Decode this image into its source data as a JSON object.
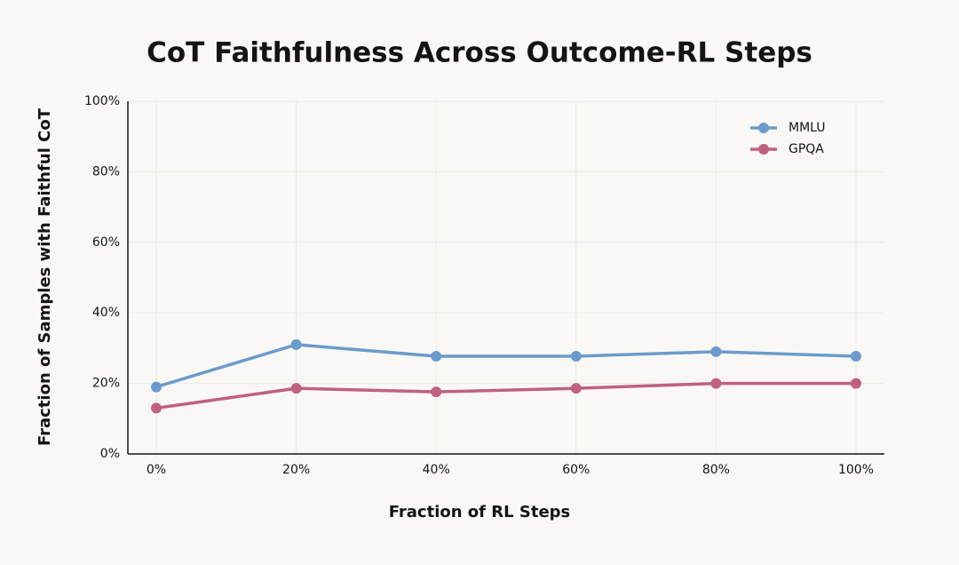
{
  "chart_data": {
    "type": "line",
    "title": "CoT Faithfulness Across Outcome-RL Steps",
    "x_label": "Fraction of RL Steps",
    "y_label": "Fraction of Samples with Faithful CoT",
    "categories": [
      "0%",
      "20%",
      "40%",
      "60%",
      "80%",
      "100%"
    ],
    "series": [
      {
        "name": "MMLU",
        "color": "#6b9bcc",
        "values": [
          19,
          31,
          27.7,
          27.7,
          29,
          27.7
        ]
      },
      {
        "name": "GPQA",
        "color": "#c0617f",
        "values": [
          13,
          18.6,
          17.6,
          18.6,
          20,
          20
        ]
      }
    ],
    "ylim": [
      0,
      100
    ],
    "yticks": [
      {
        "value": 0,
        "label": "0%"
      },
      {
        "value": 20,
        "label": "20%"
      },
      {
        "value": 40,
        "label": "40%"
      },
      {
        "value": 60,
        "label": "60%"
      },
      {
        "value": 80,
        "label": "80%"
      },
      {
        "value": 100,
        "label": "100%"
      }
    ],
    "grid": true,
    "legend": "upper right"
  }
}
